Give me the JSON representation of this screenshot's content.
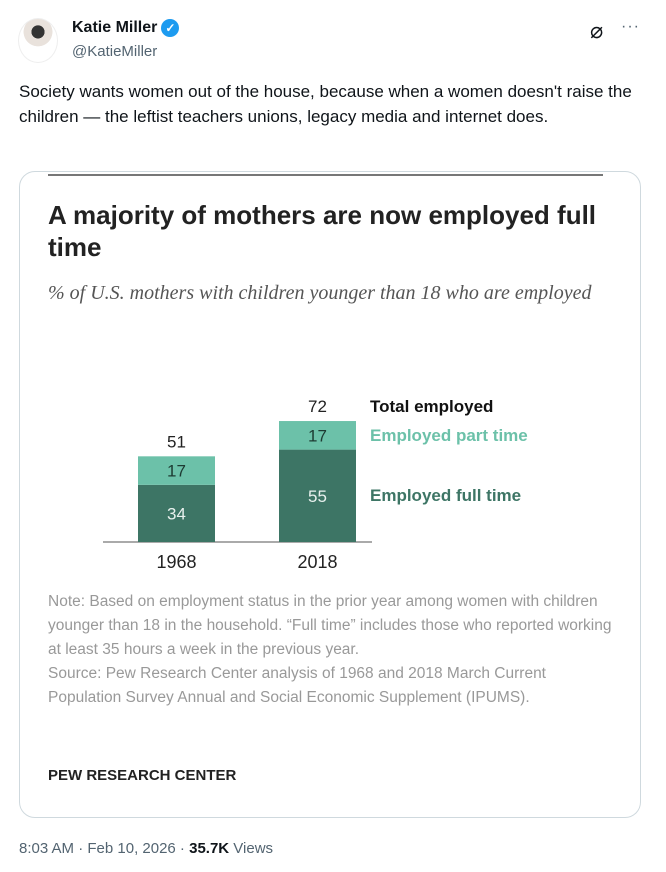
{
  "author": {
    "name": "Katie Miller",
    "handle": "@KatieMiller",
    "verified_icon": "verified-badge-icon"
  },
  "actions": {
    "grok_icon": "grok-icon",
    "more_icon": "more-icon",
    "more_label": "···",
    "verified_label": "✓"
  },
  "tweet_text": "Society wants women out of the house, because when a women doesn't raise the children — the leftist teachers unions, legacy media and internet does.",
  "chart_data": {
    "type": "bar",
    "title": "A majority of mothers are now employed full time",
    "subtitle": "% of U.S. mothers with children younger than 18 who are employed",
    "categories": [
      "1968",
      "2018"
    ],
    "series": [
      {
        "name": "Employed full time",
        "values": [
          34,
          55
        ],
        "color": "#3d7565"
      },
      {
        "name": "Employed part time",
        "values": [
          17,
          17
        ],
        "color": "#6cc1a9"
      }
    ],
    "totals": [
      51,
      72
    ],
    "totals_label": "Total employed",
    "stacked": true,
    "note": "Note: Based on employment status in the prior year among women with children younger than 18 in the household. “Full time” includes those who reported working at least 35 hours a week in the previous year.",
    "source": "Source: Pew Research Center analysis of 1968 and 2018 March Current Population Survey Annual and Social Economic Supplement (IPUMS).",
    "credit": "PEW RESEARCH CENTER"
  },
  "footer": {
    "time": "8:03 AM · Feb 10, 2026 · ",
    "views_count": "35.7K",
    "views_label": " Views"
  }
}
